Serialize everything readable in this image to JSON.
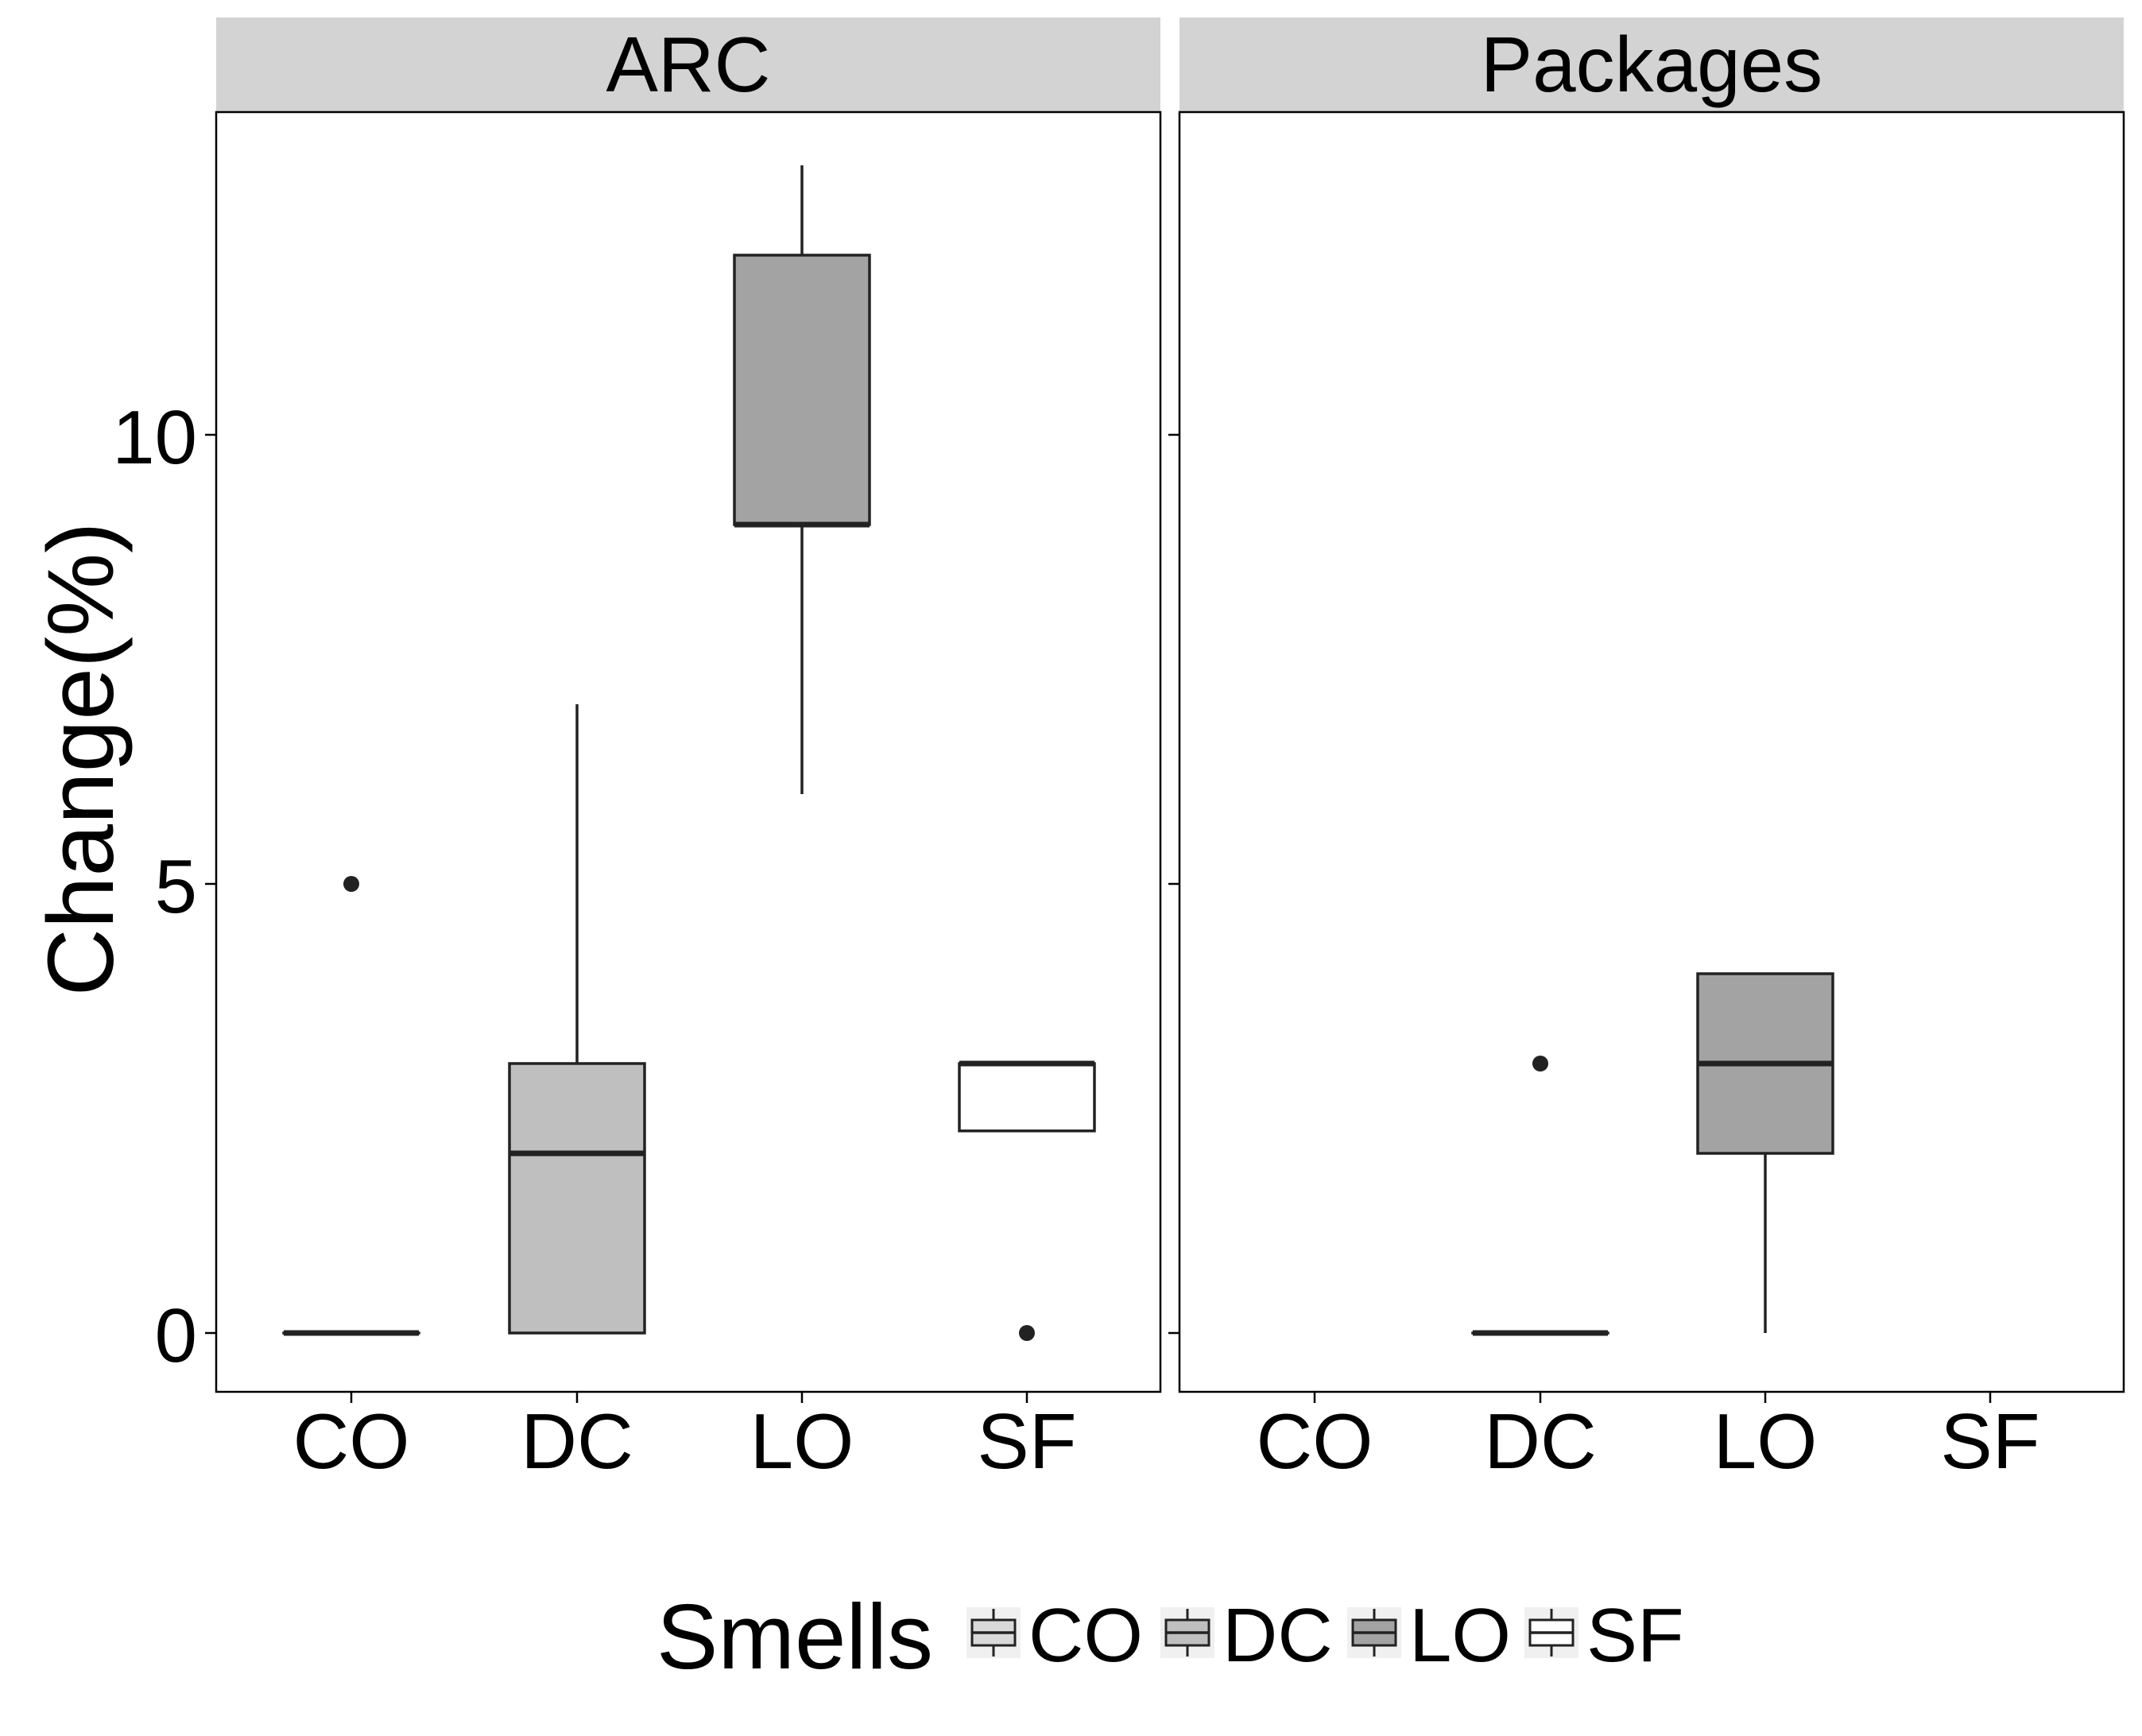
{
  "chart_data": {
    "type": "box",
    "ylabel": "Change(%)",
    "ylim": [
      -0.65,
      13.65
    ],
    "y_ticks": [
      0,
      5,
      10
    ],
    "y_tick_labels": [
      "0",
      "5",
      "10"
    ],
    "categories": [
      "CO",
      "DC",
      "LO",
      "SF"
    ],
    "grid": false,
    "legend": {
      "title": "Smells",
      "position": "bottom",
      "items": [
        {
          "label": "CO",
          "color": "#d9d9d9"
        },
        {
          "label": "DC",
          "color": "#bfbfbf"
        },
        {
          "label": "LO",
          "color": "#a3a3a3"
        },
        {
          "label": "SF",
          "color": "#ffffff"
        }
      ]
    },
    "panels": [
      {
        "title": "ARC",
        "boxes": [
          {
            "category": "CO",
            "min": 0,
            "q1": 0,
            "median": 0,
            "q3": 0,
            "max": 0,
            "outliers": [
              5
            ]
          },
          {
            "category": "DC",
            "min": 0,
            "q1": 0,
            "median": 2,
            "q3": 3,
            "max": 7,
            "outliers": []
          },
          {
            "category": "LO",
            "min": 6,
            "q1": 9,
            "median": 9,
            "q3": 12,
            "max": 13,
            "outliers": []
          },
          {
            "category": "SF",
            "min": 2.25,
            "q1": 2.25,
            "median": 3,
            "q3": 3,
            "max": 3,
            "outliers": [
              0
            ]
          }
        ]
      },
      {
        "title": "Packages",
        "boxes": [
          {
            "category": "DC",
            "min": 0,
            "q1": 0,
            "median": 0,
            "q3": 0,
            "max": 0,
            "outliers": [
              3
            ]
          },
          {
            "category": "LO",
            "min": 0,
            "q1": 2,
            "median": 3,
            "q3": 4,
            "max": 4,
            "outliers": []
          }
        ]
      }
    ]
  }
}
